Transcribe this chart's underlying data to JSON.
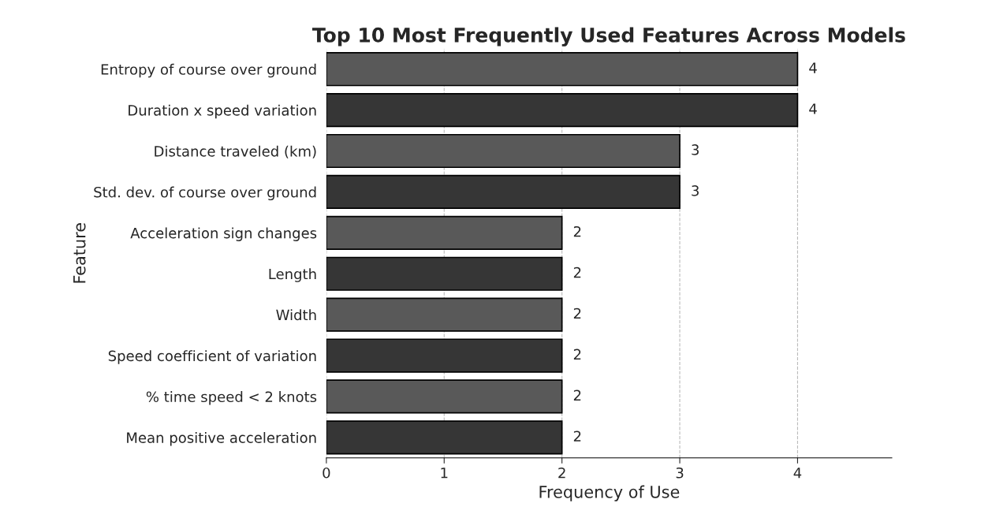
{
  "chart_data": {
    "type": "bar",
    "orientation": "horizontal",
    "title": "Top 10 Most Frequently Used Features Across Models",
    "xlabel": "Frequency of Use",
    "ylabel": "Feature",
    "categories": [
      "Entropy of course over ground",
      "Duration x speed variation",
      "Distance traveled (km)",
      "Std. dev. of course over ground",
      "Acceleration sign changes",
      "Length",
      "Width",
      "Speed coefficient of variation",
      "% time speed < 2 knots",
      "Mean positive acceleration"
    ],
    "values": [
      4,
      4,
      3,
      3,
      2,
      2,
      2,
      2,
      2,
      2
    ],
    "colors": [
      "#595959",
      "#363636",
      "#595959",
      "#363636",
      "#595959",
      "#363636",
      "#595959",
      "#363636",
      "#595959",
      "#363636"
    ],
    "xlim": [
      0,
      4.8
    ],
    "xticks": [
      0,
      1,
      2,
      3,
      4
    ],
    "grid": "x",
    "data_labels": true
  }
}
